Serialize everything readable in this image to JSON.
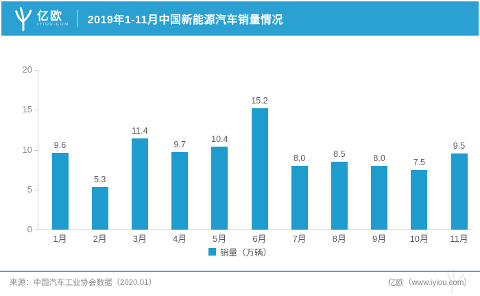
{
  "header": {
    "logo_text": "亿欧",
    "logo_subtext": "IYIOU-COM",
    "title": "2019年1-11月中国新能源汽车销量情况"
  },
  "chart_data": {
    "type": "bar",
    "title": "2019年1-11月中国新能源汽车销量情况",
    "categories": [
      "1月",
      "2月",
      "3月",
      "4月",
      "5月",
      "6月",
      "7月",
      "8月",
      "9月",
      "10月",
      "11月"
    ],
    "values": [
      9.6,
      5.3,
      11.4,
      9.7,
      10.4,
      15.2,
      8.0,
      8.5,
      8.0,
      7.5,
      9.5
    ],
    "value_labels": [
      "9.6",
      "5.3",
      "11.4",
      "9.7",
      "10.4",
      "15.2",
      "8.0",
      "8.5",
      "8.0",
      "7.5",
      "9.5"
    ],
    "legend": "销量（万辆）",
    "legend_position": "bottom",
    "xlabel": "",
    "ylabel": "",
    "ylim": [
      0,
      20
    ],
    "yticks": [
      0,
      5,
      10,
      15,
      20
    ],
    "grid": false
  },
  "footer": {
    "source": "来源：中国汽车工业协会数据（2020.01）",
    "brand": "亿欧（www.iyiou.com）"
  },
  "colors": {
    "header_bg": "#2BA0D2",
    "bar": "#1F9CCE",
    "axis": "#C9C9C9",
    "tick": "#8C8C8C",
    "label": "#595959",
    "divider": "#5DA0CC",
    "footer_text": "#8A8A8A"
  }
}
